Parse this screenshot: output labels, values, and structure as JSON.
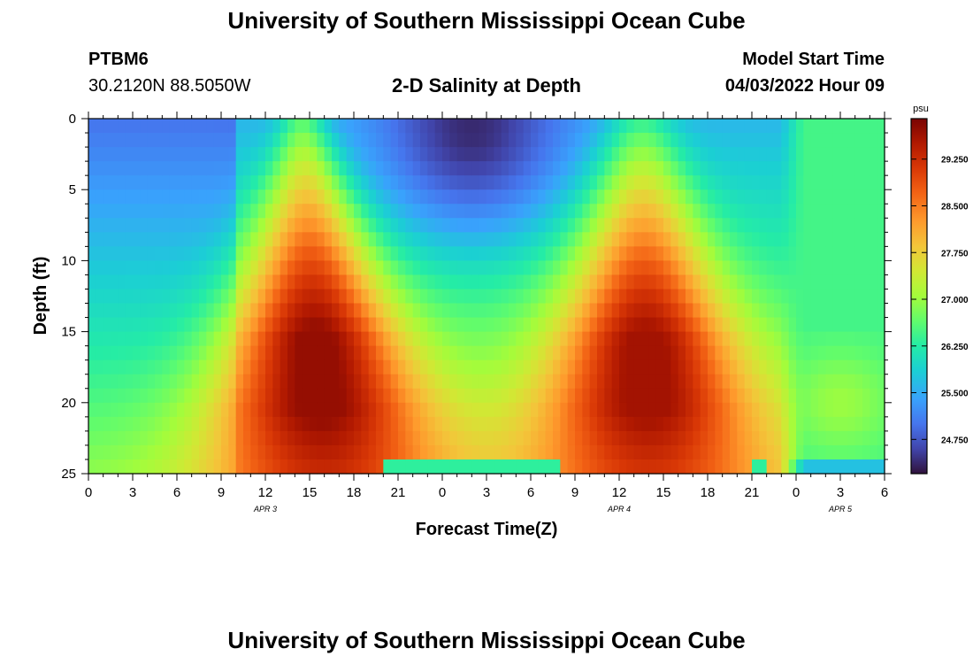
{
  "header": {
    "title": "University of Southern Mississippi Ocean Cube",
    "station": "PTBM6",
    "coords": "30.2120N  88.5050W",
    "subtitle": "2-D Salinity at Depth",
    "model_start_label": "Model Start Time",
    "model_start_value": "04/03/2022 Hour 09"
  },
  "footer": {
    "title": "University of Southern Mississippi Ocean Cube"
  },
  "chart_data": {
    "type": "heatmap",
    "title": "2-D Salinity at Depth",
    "xlabel": "Forecast Time(Z)",
    "ylabel": "Depth (ft)",
    "x_range_hours": [
      0,
      54
    ],
    "ylim": [
      25,
      0
    ],
    "x_tick_labels": [
      "0",
      "3",
      "6",
      "9",
      "12",
      "15",
      "18",
      "21",
      "0",
      "3",
      "6",
      "9",
      "12",
      "15",
      "18",
      "21",
      "0",
      "3",
      "6"
    ],
    "y_ticks": [
      0,
      5,
      10,
      15,
      20,
      25
    ],
    "date_labels": [
      {
        "label": "APR 3",
        "hour": 12
      },
      {
        "label": "APR 4",
        "hour": 36
      },
      {
        "label": "APR 5",
        "hour": 51
      }
    ],
    "colorbar": {
      "unit": "psu",
      "ticks": [
        "29.250",
        "28.500",
        "27.750",
        "27.000",
        "26.250",
        "25.500",
        "24.750"
      ],
      "range": [
        24.2,
        29.9
      ]
    },
    "value_range_psu": [
      24.3,
      29.7
    ],
    "pattern": "two high-salinity (~29.5 psu) tongues centered near 20 ft around hour 15 (Apr 3) and hour 38 (Apr 4); low-salinity (~24.5 psu) surface water between; ~26.5 psu after hour 47"
  }
}
